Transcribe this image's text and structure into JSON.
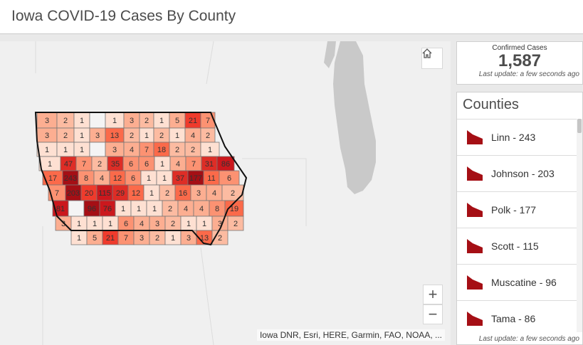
{
  "header": {
    "title": "Iowa COVID-19 Cases By County"
  },
  "summary": {
    "label": "Confirmed Cases",
    "value": "1,587",
    "last_update": "Last update: a few seconds ago"
  },
  "counties": {
    "title": "Counties",
    "items": [
      {
        "label": "Linn - 243"
      },
      {
        "label": "Johnson - 203"
      },
      {
        "label": "Polk - 177"
      },
      {
        "label": "Scott - 115"
      },
      {
        "label": "Muscatine - 96"
      },
      {
        "label": "Tama - 86"
      }
    ],
    "last_update": "Last update: a few seconds ago",
    "swatch_color": "#a50f15"
  },
  "map": {
    "attribution": "Iowa DNR, Esri, HERE, Garmin, FAO, NOAA, ...",
    "zoom_in": "+",
    "zoom_out": "−",
    "county_labels": [
      "3",
      "2",
      "1",
      "1",
      "3",
      "2",
      "1",
      "5",
      "21",
      "7",
      "3",
      "2",
      "1",
      "3",
      "13",
      "2",
      "1",
      "2",
      "1",
      "4",
      "2",
      "1",
      "1",
      "1",
      "3",
      "4",
      "7",
      "18",
      "2",
      "2",
      "1",
      "1",
      "47",
      "7",
      "2",
      "35",
      "6",
      "6",
      "1",
      "4",
      "7",
      "31",
      "86",
      "17",
      "243",
      "8",
      "4",
      "12",
      "6",
      "1",
      "1",
      "37",
      "177",
      "11",
      "6",
      "7",
      "203",
      "20",
      "115",
      "29",
      "12",
      "1",
      "2",
      "16",
      "3",
      "4",
      "2",
      "81",
      "96",
      "76",
      "1",
      "1",
      "1",
      "2",
      "4",
      "4",
      "8",
      "19",
      "3",
      "1",
      "1",
      "1",
      "6",
      "4"
    ]
  }
}
